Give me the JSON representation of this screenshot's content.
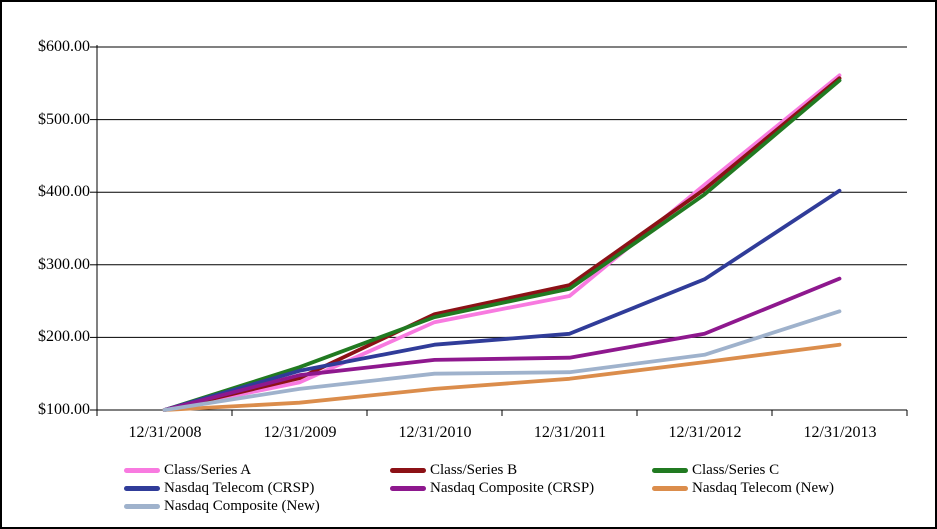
{
  "chart_data": {
    "type": "line",
    "title": "",
    "xlabel": "",
    "ylabel": "",
    "x_categories": [
      "12/31/2008",
      "12/31/2009",
      "12/31/2010",
      "12/31/2011",
      "12/31/2012",
      "12/31/2013"
    ],
    "y_ticks": [
      "$600.00",
      "$500.00",
      "$400.00",
      "$300.00",
      "$200.00",
      "$100.00"
    ],
    "y_tick_values": [
      600,
      500,
      400,
      300,
      200,
      100
    ],
    "ylim": [
      100,
      600
    ],
    "grid": "horizontal",
    "legend_position": "bottom",
    "axis_color": "#000000",
    "background_color": "#ffffff",
    "series": [
      {
        "name": "Class/Series A",
        "color": "#f87ae0",
        "values": [
          100,
          138,
          221,
          257,
          410,
          561
        ]
      },
      {
        "name": "Class/Series B",
        "color": "#8c1116",
        "values": [
          100,
          144,
          232,
          272,
          404,
          557
        ]
      },
      {
        "name": "Class/Series C",
        "color": "#217a21",
        "values": [
          100,
          159,
          228,
          267,
          397,
          554
        ]
      },
      {
        "name": "Nasdaq Telecom (CRSP)",
        "color": "#303c99",
        "values": [
          100,
          154,
          190,
          205,
          280,
          402
        ]
      },
      {
        "name": "Nasdaq Composite (CRSP)",
        "color": "#8e188e",
        "values": [
          100,
          148,
          169,
          172,
          205,
          281
        ]
      },
      {
        "name": "Nasdaq Telecom (New)",
        "color": "#db8d4c",
        "values": [
          100,
          110,
          129,
          143,
          166,
          190
        ]
      },
      {
        "name": "Nasdaq Composite (New)",
        "color": "#9fb2cc",
        "values": [
          100,
          129,
          150,
          152,
          176,
          236
        ]
      }
    ]
  }
}
